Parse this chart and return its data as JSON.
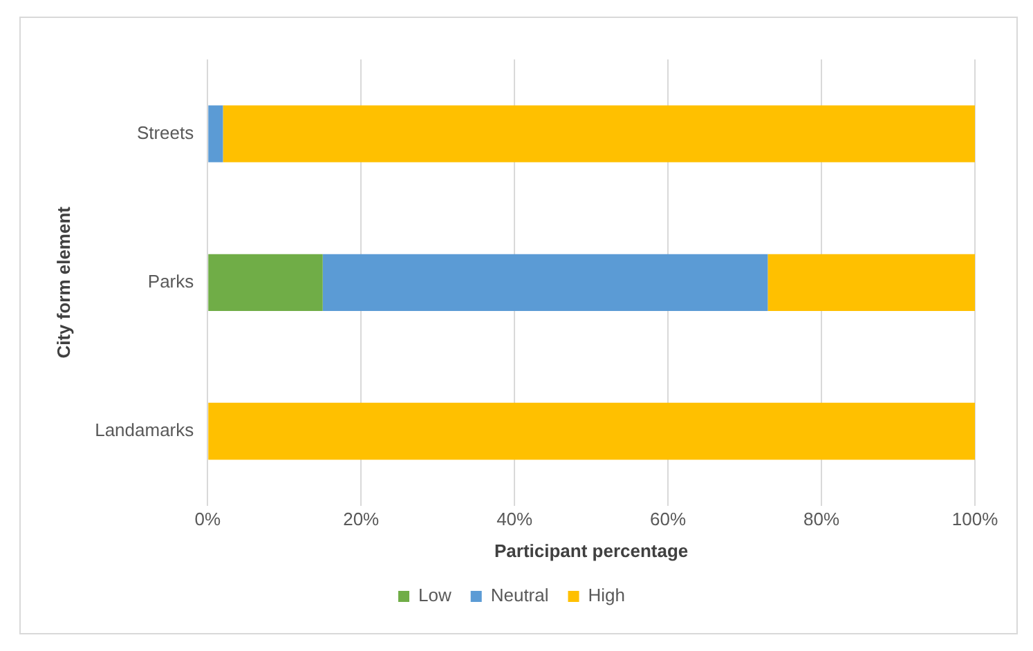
{
  "chart_data": {
    "type": "bar",
    "orientation": "horizontal",
    "stacked": true,
    "xlabel": "Participant percentage",
    "ylabel": "City form element",
    "categories": [
      "Streets",
      "Parks",
      "Landamarks"
    ],
    "series": [
      {
        "name": "Low",
        "color": "#70ad47",
        "values": [
          0,
          15,
          0
        ]
      },
      {
        "name": "Neutral",
        "color": "#5b9bd5",
        "values": [
          2,
          58,
          0
        ]
      },
      {
        "name": "High",
        "color": "#ffc000",
        "values": [
          98,
          27,
          100
        ]
      }
    ],
    "xlim": [
      0,
      100
    ],
    "xticks": [
      {
        "value": 0,
        "label": "0%"
      },
      {
        "value": 20,
        "label": "20%"
      },
      {
        "value": 40,
        "label": "40%"
      },
      {
        "value": 60,
        "label": "60%"
      },
      {
        "value": 80,
        "label": "80%"
      },
      {
        "value": 100,
        "label": "100%"
      }
    ],
    "grid": "x",
    "legend": "bottom"
  }
}
